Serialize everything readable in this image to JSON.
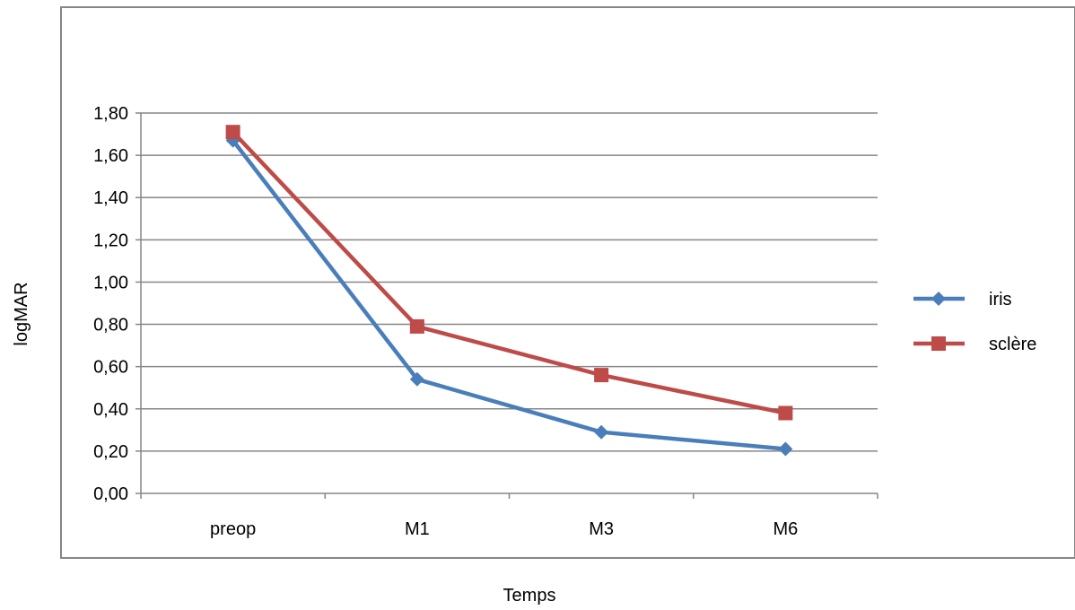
{
  "chart_data": {
    "type": "line",
    "categories": [
      "preop",
      "M1",
      "M3",
      "M6"
    ],
    "series": [
      {
        "name": "iris",
        "values": [
          1.67,
          0.54,
          0.29,
          0.21
        ],
        "color": "#4a7ebb",
        "marker": "diamond"
      },
      {
        "name": "sclère",
        "values": [
          1.71,
          0.79,
          0.56,
          0.38
        ],
        "color": "#be4b48",
        "marker": "square"
      }
    ],
    "title": "",
    "xlabel": "Temps",
    "ylabel": "logMAR",
    "ylim": [
      0,
      1.8
    ],
    "yticks": [
      "0,00",
      "0,20",
      "0,40",
      "0,60",
      "0,80",
      "1,00",
      "1,20",
      "1,40",
      "1,60",
      "1,80"
    ],
    "grid": true,
    "legend_position": "right"
  }
}
